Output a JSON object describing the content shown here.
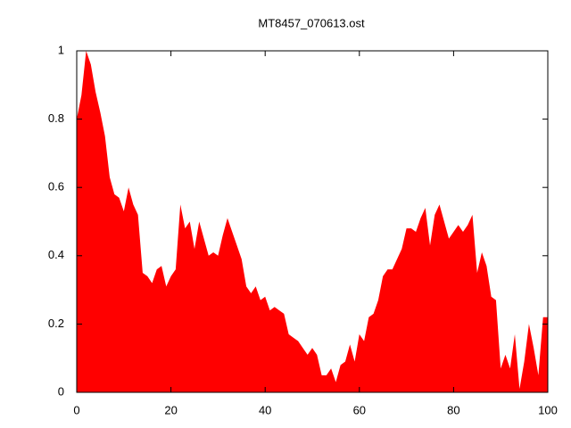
{
  "chart_data": {
    "type": "area",
    "title": "MT8457_070613.ost",
    "color": "#ff0000",
    "x": [
      0,
      1,
      2,
      3,
      4,
      5,
      6,
      7,
      8,
      9,
      10,
      11,
      12,
      13,
      14,
      15,
      16,
      17,
      18,
      19,
      20,
      21,
      22,
      23,
      24,
      25,
      26,
      27,
      28,
      29,
      30,
      31,
      32,
      33,
      34,
      35,
      36,
      37,
      38,
      39,
      40,
      41,
      42,
      43,
      44,
      45,
      46,
      47,
      48,
      49,
      50,
      51,
      52,
      53,
      54,
      55,
      56,
      57,
      58,
      59,
      60,
      61,
      62,
      63,
      64,
      65,
      66,
      67,
      68,
      69,
      70,
      71,
      72,
      73,
      74,
      75,
      76,
      77,
      78,
      79,
      80,
      81,
      82,
      83,
      84,
      85,
      86,
      87,
      88,
      89,
      90,
      91,
      92,
      93,
      94,
      95,
      96,
      97,
      98,
      99,
      100
    ],
    "values": [
      0.8,
      0.87,
      1.0,
      0.96,
      0.88,
      0.82,
      0.75,
      0.63,
      0.58,
      0.57,
      0.53,
      0.6,
      0.55,
      0.52,
      0.35,
      0.34,
      0.32,
      0.36,
      0.37,
      0.31,
      0.34,
      0.36,
      0.55,
      0.48,
      0.5,
      0.42,
      0.5,
      0.45,
      0.4,
      0.41,
      0.4,
      0.46,
      0.51,
      0.47,
      0.43,
      0.39,
      0.31,
      0.29,
      0.31,
      0.27,
      0.28,
      0.24,
      0.25,
      0.24,
      0.23,
      0.17,
      0.16,
      0.15,
      0.13,
      0.11,
      0.13,
      0.11,
      0.05,
      0.05,
      0.07,
      0.03,
      0.08,
      0.09,
      0.14,
      0.09,
      0.17,
      0.15,
      0.22,
      0.23,
      0.27,
      0.34,
      0.36,
      0.36,
      0.39,
      0.42,
      0.48,
      0.48,
      0.47,
      0.51,
      0.54,
      0.43,
      0.52,
      0.55,
      0.5,
      0.45,
      0.47,
      0.49,
      0.47,
      0.49,
      0.52,
      0.35,
      0.41,
      0.37,
      0.28,
      0.27,
      0.07,
      0.11,
      0.07,
      0.17,
      0.01,
      0.09,
      0.2,
      0.13,
      0.05,
      0.22,
      0.22
    ],
    "xlim": [
      0,
      100
    ],
    "xticks": [
      0,
      20,
      40,
      60,
      80,
      100
    ],
    "ylim": [
      0,
      1
    ],
    "yticks": [
      0,
      0.2,
      0.4,
      0.6,
      0.8,
      1
    ]
  }
}
